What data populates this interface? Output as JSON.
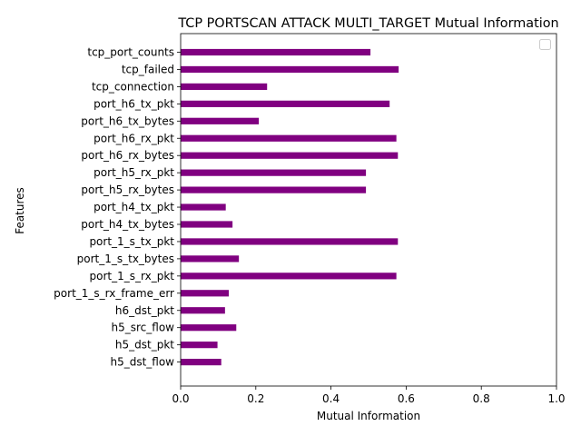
{
  "chart_data": {
    "type": "bar",
    "orientation": "horizontal",
    "title": "TCP PORTSCAN ATTACK MULTI_TARGET Mutual Information",
    "xlabel": "Mutual Information",
    "ylabel": "Features",
    "xlim": [
      0,
      1
    ],
    "xticks": [
      "0.0",
      "0.2",
      "0.4",
      "0.6",
      "0.8",
      "1.0"
    ],
    "bar_color": "#800080",
    "legend": "upper right (empty)",
    "grid": false,
    "categories": [
      "tcp_port_counts",
      "tcp_failed",
      "tcp_connection",
      "port_h6_tx_pkt",
      "port_h6_tx_bytes",
      "port_h6_rx_pkt",
      "port_h6_rx_bytes",
      "port_h5_rx_pkt",
      "port_h5_rx_bytes",
      "port_h4_tx_pkt",
      "port_h4_tx_bytes",
      "port_1_s_tx_pkt",
      "port_1_s_tx_bytes",
      "port_1_s_rx_pkt",
      "port_1_s_rx_frame_err",
      "h6_dst_pkt",
      "h5_src_flow",
      "h5_dst_pkt",
      "h5_dst_flow"
    ],
    "values": [
      0.505,
      0.58,
      0.23,
      0.556,
      0.208,
      0.574,
      0.578,
      0.493,
      0.493,
      0.12,
      0.138,
      0.578,
      0.155,
      0.574,
      0.128,
      0.118,
      0.148,
      0.098,
      0.108
    ]
  }
}
